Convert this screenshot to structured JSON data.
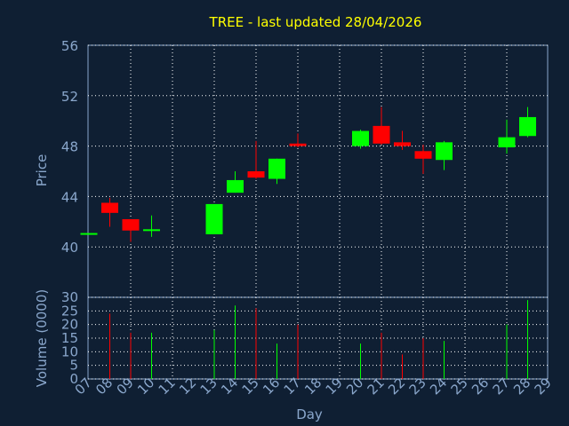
{
  "chart_data": {
    "type": "candlestick",
    "title": "TREE - last updated 28/04/2026",
    "price_panel": {
      "ylabel": "Price",
      "ylim": [
        36,
        56
      ],
      "yticks": [
        40,
        44,
        48,
        52,
        56
      ],
      "grid": true
    },
    "volume_panel": {
      "ylabel": "Volume (0000)",
      "ylim": [
        0,
        30
      ],
      "yticks": [
        0,
        5,
        10,
        15,
        20,
        25,
        30
      ],
      "grid": true
    },
    "xlabel": "Day",
    "x_ticks": [
      "07",
      "08",
      "09",
      "10",
      "11",
      "12",
      "13",
      "14",
      "15",
      "16",
      "17",
      "18",
      "19",
      "20",
      "21",
      "22",
      "23",
      "24",
      "25",
      "26",
      "27",
      "28",
      "29"
    ],
    "colors": {
      "up": "#00ff00",
      "down": "#ff0000",
      "title": "#ffff00",
      "axis": "#8aa7cc",
      "background": "#0f1f33"
    },
    "candles": [
      {
        "day": "07",
        "open": 41.1,
        "high": 41.1,
        "low": 41.1,
        "close": 41.1,
        "volume": 0
      },
      {
        "day": "08",
        "open": 43.5,
        "high": 43.9,
        "low": 41.6,
        "close": 42.7,
        "volume": 24
      },
      {
        "day": "09",
        "open": 42.2,
        "high": 42.2,
        "low": 40.4,
        "close": 41.3,
        "volume": 17
      },
      {
        "day": "10",
        "open": 41.3,
        "high": 42.5,
        "low": 40.8,
        "close": 41.4,
        "volume": 17
      },
      {
        "day": "13",
        "open": 41.0,
        "high": 43.4,
        "low": 41.0,
        "close": 43.4,
        "volume": 18
      },
      {
        "day": "14",
        "open": 44.3,
        "high": 46.0,
        "low": 44.3,
        "close": 45.3,
        "volume": 27
      },
      {
        "day": "15",
        "open": 46.0,
        "high": 48.4,
        "low": 45.4,
        "close": 45.5,
        "volume": 26
      },
      {
        "day": "16",
        "open": 45.4,
        "high": 47.0,
        "low": 45.0,
        "close": 47.0,
        "volume": 13
      },
      {
        "day": "17",
        "open": 48.2,
        "high": 49.0,
        "low": 47.9,
        "close": 48.0,
        "volume": 20
      },
      {
        "day": "20",
        "open": 48.0,
        "high": 49.3,
        "low": 47.8,
        "close": 49.2,
        "volume": 13
      },
      {
        "day": "21",
        "open": 49.6,
        "high": 51.1,
        "low": 48.1,
        "close": 48.2,
        "volume": 17
      },
      {
        "day": "22",
        "open": 48.3,
        "high": 49.2,
        "low": 47.7,
        "close": 48.0,
        "volume": 9
      },
      {
        "day": "23",
        "open": 47.6,
        "high": 48.1,
        "low": 45.8,
        "close": 47.0,
        "volume": 15
      },
      {
        "day": "24",
        "open": 46.9,
        "high": 48.4,
        "low": 46.1,
        "close": 48.3,
        "volume": 14
      },
      {
        "day": "27",
        "open": 47.9,
        "high": 50.1,
        "low": 47.4,
        "close": 48.7,
        "volume": 20
      },
      {
        "day": "28",
        "open": 48.8,
        "high": 51.1,
        "low": 48.7,
        "close": 50.3,
        "volume": 29
      }
    ]
  }
}
